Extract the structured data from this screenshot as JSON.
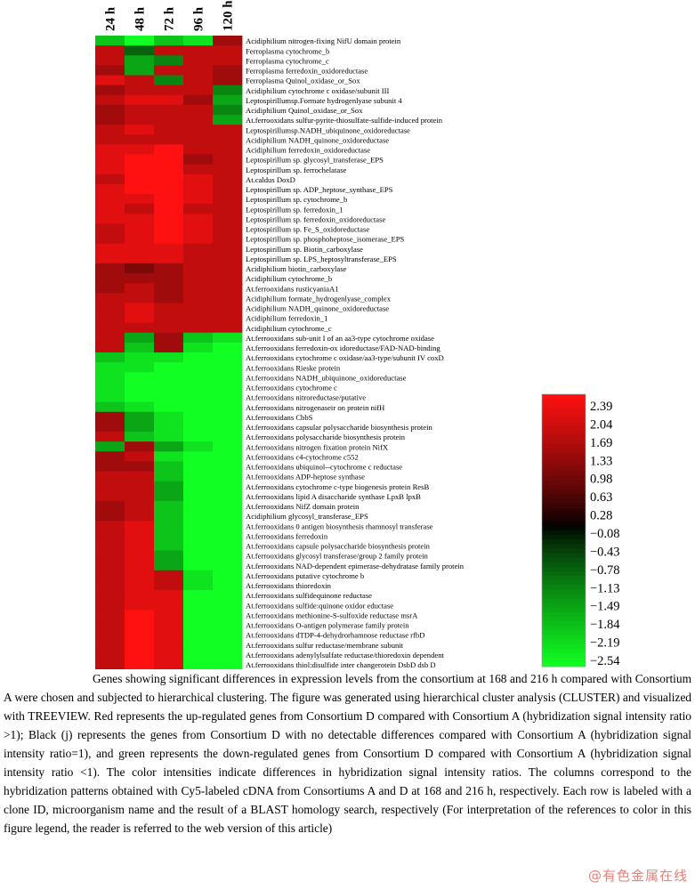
{
  "chart_data": {
    "type": "heatmap",
    "columns": [
      "24 h",
      "48 h",
      "72 h",
      "96 h",
      "120 h"
    ],
    "rows": [
      "Acidiphilium nitrogen-fixing NifU domain protein",
      "Ferroplasma cytochrome_b",
      "Ferroplasma cytochrome_c",
      "Ferroplasma ferredoxin_oxidoreductase",
      "Ferroplasma Quinol_oxidase_or_Sox",
      "Acidiphilium cytochrome c oxidase/subunit III",
      "Leptospirillumsp.Formate hydrogenlyase subunit 4",
      "Acidiphilium Quinol_oxidase_or_Sox",
      "At.ferrooxidans sulfur-pyrite-thiosulfate-sulfide-induced protein",
      "Leptospirillumsp.NADH_ubiquinone_oxidoreductase",
      "Acidiphilium NADH_quinone_oxidoreductase",
      "Acidiphilium ferredoxin_oxidoreductase",
      "Leptospirillum sp. glycosyl_transferase_EPS",
      "Leptospirillum sp. ferrochelatase",
      "At.caldus DoxD",
      "Leptospirillum sp. ADP_heptose_synthase_EPS",
      "Leptospirillum sp. cytochrome_b",
      "Leptospirillum sp. ferredoxin_1",
      "Leptospirillum sp. ferredoxin_oxidoreductase",
      "Leptospirillum sp. Fe_S_oxidoreductase",
      "Leptospirillum sp. phosphoheptose_isomerase_EPS",
      "Leptospirillum sp. Biotin_carboxylase",
      "Leptospirillum sp. LPS_heptosyltransferase_EPS",
      "Acidiphilium biotin_carboxylase",
      "Acidiphilium cytochrome_b",
      "At.ferrooxidans rusticyaniaA1",
      "Acidiphilium formate_hydrogenlyase_complex",
      "Acidiphilium NADH_quinone_oxidoreductase",
      "Acidiphilium ferredoxin_1",
      "Acidiphilium cytochrome_c",
      "At.ferrooxidans sub-unit I of an aa3-type cytochrome oxidase",
      "At.ferrooxidans ferredoxin-ox idoreductase/FAD-NAD-binding",
      "At.ferrooxidans cytochrome c oxidase/aa3-type/subunit IV coxD",
      "At.ferrooxidans Rieske protein",
      "At.ferrooxidans NADH_ubiquinone_oxidoreductase",
      "At.ferrooxidans cytochrome c",
      "At.ferrooxidans nitroreductase/putative",
      "At.ferrooxidans nitrogenaseir on protein nifH",
      "At.ferrooxidans CbbS",
      "At.ferrooxidans capsular polysaccharide biosynthesis protein",
      "At.ferrooxidans polysaccharide biosynthesis protein",
      "At.ferrooxidans nitrogen fixation protein NifX",
      "At.ferrooxidans c4-cytochrome c552",
      "At.ferrooxidans ubiquinol--cytochrome c reductase",
      "At.ferrooxidans ADP-heptose synthase",
      "At.ferrooxidans cytochrome c-type biogenesis protein ResB",
      "At.ferrooxidans lipid A disaccharide synthase LpxB lpxB",
      "At.ferrooxidans NifZ domain protein",
      "Acidiphilium glycosyl_transferase_EPS",
      "At.ferrooxidans 0 antigen biosynthesis rhamnosyl transferase",
      "At.ferrooxidans ferredoxin",
      "At.ferrooxidans capsule polysaccharide biosynthesis protein",
      "At.ferrooxidans glycosyl transferase/group 2 family protein",
      "At.ferrooxidans NAD-dependent epimerase-dehydratase family protein",
      "At.ferrooxidans putative cytochrome b",
      "At.ferrooxidans thioredoxin",
      "At.ferrooxidans sulfidequinone reductase",
      "At.ferrooxidans sulfide:quinone oxidor eductase",
      "At.ferrooxidans methionine-S-sulfoxide reductase msrA",
      "At.ferrooxidans O-antigen polymerase family protein",
      "At.ferrooxidans dTDP-4-dehydrorhamnose reductase rfbD",
      "At.ferrooxidans sulfur reductase/membrane subunit",
      "At.ferrooxidans adenylylsulfate reductase/thioredoxin dependent",
      "At.ferrooxidans thiol:disulfide inter changerotein DsbD dsb D"
    ],
    "values": [
      [
        -1.84,
        -2.54,
        -1.84,
        -2.19,
        1.33
      ],
      [
        1.69,
        -0.78,
        1.69,
        1.69,
        1.69
      ],
      [
        1.69,
        -1.49,
        -1.13,
        1.69,
        1.69
      ],
      [
        1.33,
        -1.49,
        1.69,
        1.69,
        1.33
      ],
      [
        2.04,
        1.69,
        -1.13,
        1.69,
        1.33
      ],
      [
        1.33,
        1.69,
        1.69,
        1.69,
        -1.13
      ],
      [
        1.69,
        2.04,
        2.04,
        1.33,
        -1.49
      ],
      [
        1.33,
        1.69,
        1.69,
        1.69,
        -1.13
      ],
      [
        1.33,
        1.69,
        1.69,
        1.69,
        -1.49
      ],
      [
        1.69,
        2.04,
        1.69,
        1.69,
        1.69
      ],
      [
        1.69,
        1.69,
        1.69,
        1.69,
        1.69
      ],
      [
        2.04,
        2.04,
        2.39,
        1.69,
        1.69
      ],
      [
        2.04,
        2.39,
        2.39,
        1.33,
        1.69
      ],
      [
        2.04,
        2.39,
        2.39,
        1.69,
        1.69
      ],
      [
        1.69,
        2.39,
        2.39,
        2.04,
        1.69
      ],
      [
        2.04,
        2.39,
        2.39,
        2.04,
        1.69
      ],
      [
        2.04,
        2.04,
        2.39,
        2.04,
        1.69
      ],
      [
        2.04,
        1.69,
        2.39,
        1.69,
        1.69
      ],
      [
        2.04,
        2.04,
        2.39,
        2.04,
        1.69
      ],
      [
        1.69,
        2.04,
        2.39,
        2.04,
        1.69
      ],
      [
        1.69,
        2.04,
        2.39,
        2.04,
        1.69
      ],
      [
        2.04,
        2.04,
        2.04,
        1.69,
        1.69
      ],
      [
        2.04,
        2.04,
        2.04,
        1.69,
        1.69
      ],
      [
        1.33,
        0.98,
        1.33,
        1.69,
        1.69
      ],
      [
        1.33,
        1.33,
        1.33,
        1.69,
        1.69
      ],
      [
        1.33,
        1.69,
        1.33,
        1.69,
        1.69
      ],
      [
        1.69,
        1.69,
        1.33,
        1.69,
        1.69
      ],
      [
        1.69,
        2.04,
        1.69,
        1.69,
        1.69
      ],
      [
        1.69,
        2.04,
        1.69,
        1.69,
        1.69
      ],
      [
        1.69,
        1.69,
        1.69,
        1.69,
        1.69
      ],
      [
        1.69,
        -1.49,
        1.33,
        -1.84,
        -2.19
      ],
      [
        1.69,
        -1.84,
        1.33,
        -2.19,
        -2.54
      ],
      [
        -1.84,
        -2.19,
        -2.19,
        -2.54,
        -2.54
      ],
      [
        -2.19,
        -2.19,
        -2.54,
        -2.54,
        -2.54
      ],
      [
        -2.19,
        -2.54,
        -2.54,
        -2.54,
        -2.54
      ],
      [
        -2.19,
        -2.54,
        -2.54,
        -2.54,
        -2.54
      ],
      [
        -2.19,
        -2.54,
        -2.54,
        -2.54,
        -2.54
      ],
      [
        -1.84,
        -2.19,
        -2.54,
        -2.54,
        -2.54
      ],
      [
        1.33,
        -1.49,
        -2.19,
        -2.54,
        -2.54
      ],
      [
        1.33,
        -1.49,
        -2.19,
        -2.54,
        -2.54
      ],
      [
        1.69,
        -1.84,
        -2.19,
        -2.54,
        -2.54
      ],
      [
        -1.49,
        1.33,
        -1.49,
        -2.19,
        -2.54
      ],
      [
        1.33,
        1.69,
        -2.19,
        -2.54,
        -2.54
      ],
      [
        1.33,
        1.33,
        -1.84,
        -2.54,
        -2.54
      ],
      [
        1.69,
        1.69,
        -1.84,
        -2.54,
        -2.54
      ],
      [
        1.69,
        1.69,
        -1.49,
        -2.54,
        -2.54
      ],
      [
        1.69,
        1.69,
        -1.49,
        -2.54,
        -2.54
      ],
      [
        1.33,
        1.69,
        -1.84,
        -2.54,
        -2.54
      ],
      [
        1.33,
        1.69,
        -1.84,
        -2.54,
        -2.54
      ],
      [
        1.69,
        2.04,
        -1.84,
        -2.54,
        -2.54
      ],
      [
        1.69,
        2.04,
        -1.84,
        -2.54,
        -2.54
      ],
      [
        1.69,
        2.04,
        -1.84,
        -2.54,
        -2.54
      ],
      [
        1.69,
        2.04,
        -1.49,
        -2.54,
        -2.54
      ],
      [
        1.69,
        2.04,
        -1.49,
        -2.54,
        -2.54
      ],
      [
        1.69,
        2.04,
        1.69,
        -2.19,
        -2.54
      ],
      [
        1.69,
        2.04,
        1.69,
        -2.19,
        -2.54
      ],
      [
        1.69,
        2.04,
        2.04,
        -2.54,
        -2.54
      ],
      [
        1.69,
        2.04,
        2.04,
        -2.54,
        -2.54
      ],
      [
        1.69,
        2.39,
        2.04,
        -2.54,
        -2.54
      ],
      [
        1.69,
        2.39,
        2.04,
        -2.54,
        -2.54
      ],
      [
        1.69,
        2.39,
        2.04,
        -2.54,
        -2.54
      ],
      [
        1.69,
        2.39,
        2.04,
        -2.54,
        -2.54
      ],
      [
        1.69,
        2.39,
        2.04,
        -2.54,
        -2.54
      ],
      [
        1.69,
        2.39,
        2.04,
        -2.54,
        -2.54
      ]
    ],
    "color_scale": {
      "ticks": [
        2.39,
        2.04,
        1.69,
        1.33,
        0.98,
        0.63,
        0.28,
        -0.08,
        -0.43,
        -0.78,
        -1.13,
        -1.49,
        -1.84,
        -2.19,
        -2.54
      ],
      "tick_labels": [
        "2.39",
        "2.04",
        "1.69",
        "1.33",
        "0.98",
        "0.63",
        "0.28",
        "−0.08",
        "−0.43",
        "−0.78",
        "−1.13",
        "−1.49",
        "−1.84",
        "−2.19",
        "−2.54"
      ],
      "high_color": "#ff1111",
      "zero_color": "#000000",
      "low_color": "#11ff22",
      "orientation": "vertical"
    }
  },
  "caption": "Genes showing significant differences in expression levels from the consortium at 168 and 216 h compared with Consortium A were chosen and subjected to hierarchical clustering. The figure was generated using hierarchical cluster analysis (CLUSTER) and visualized with TREEVIEW. Red represents the up-regulated genes from Consortium D compared with Consortium A (hybridization signal intensity ratio >1); Black (j) represents the genes from Consortium D with no detectable differences compared with Consortium A (hybridization signal intensity ratio=1), and green represents the down-regulated genes from Consortium D compared with Consortium A (hybridization signal intensity ratio <1). The color intensities indicate differences in hybridization signal intensity ratios. The columns correspond to the hybridization patterns obtained with Cy5-labeled cDNA from Consortiums A and D at 168 and 216 h, respectively. Each row is labeled with a clone ID, microorganism name and the result of a BLAST homology search, respectively (For interpretation of the references to color in this figure legend, the reader is referred to the web version of this article)",
  "watermark": "@有色金属在线"
}
